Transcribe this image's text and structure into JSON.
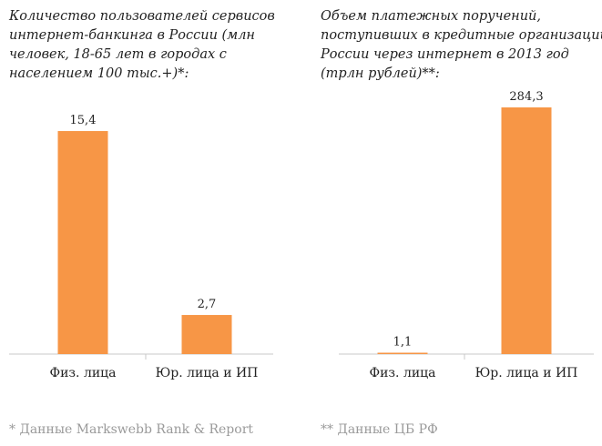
{
  "chart_data": [
    {
      "type": "bar",
      "title_lines": [
        "Количество пользователей сервисов",
        "интернет-банкинга в России (млн",
        "человек, 18-65 лет в городах с",
        "населением 100 тыс.+)*:"
      ],
      "categories": [
        "Физ. лица",
        "Юр. лица и ИП"
      ],
      "values": [
        15.4,
        2.7
      ],
      "value_labels": [
        "15,4",
        "2,7"
      ],
      "ylim": [
        0,
        15.4
      ],
      "color": "#F79646",
      "footnote": "* Данные Markswebb Rank & Report"
    },
    {
      "type": "bar",
      "title_lines": [
        "Объем платежных поручений,",
        "поступивших в кредитные организации",
        "России через интернет в 2013 год",
        "(трлн рублей)**:"
      ],
      "categories": [
        "Физ. лица",
        "Юр. лица и ИП"
      ],
      "values": [
        1.1,
        284.3
      ],
      "value_labels": [
        "1,1",
        "284,3"
      ],
      "ylim": [
        0,
        284.3
      ],
      "color": "#F79646",
      "footnote": "** Данные ЦБ РФ"
    }
  ]
}
